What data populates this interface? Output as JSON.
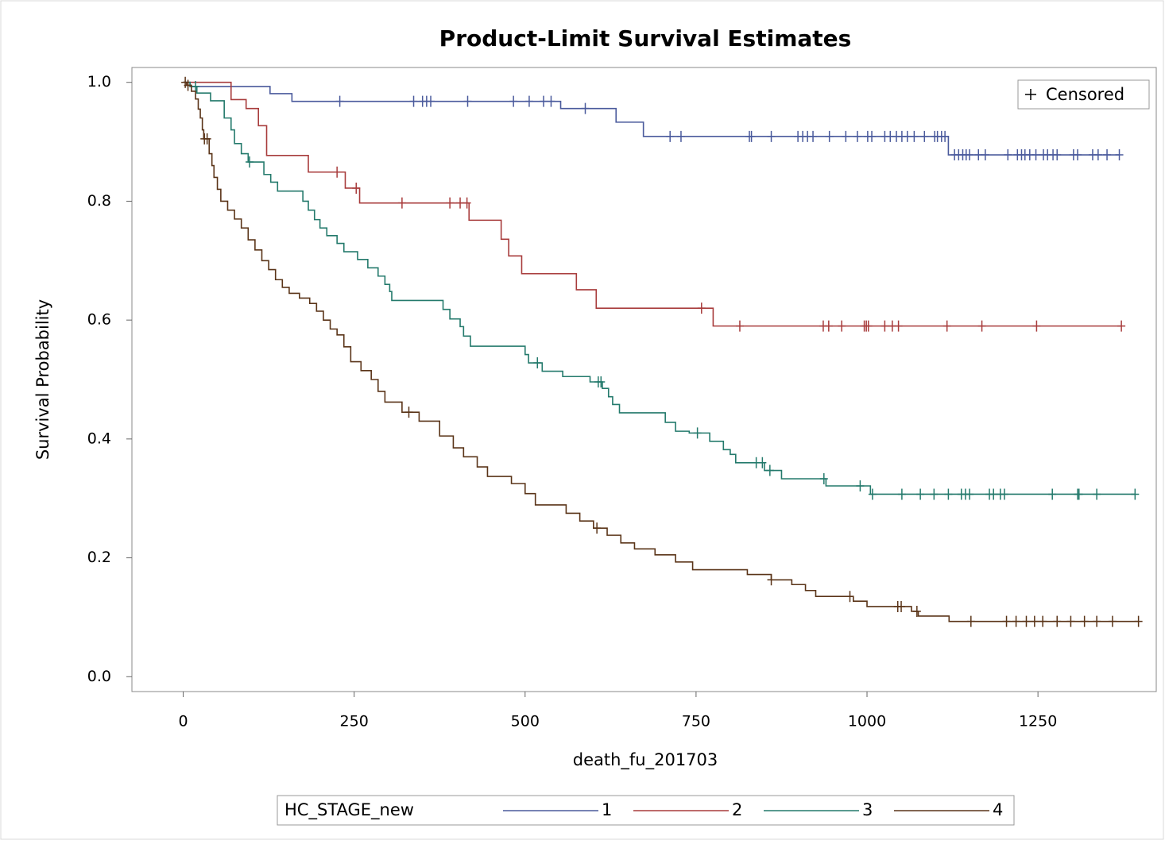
{
  "chart_data": {
    "type": "step",
    "title": "Product-Limit Survival Estimates",
    "x_label": "death_fu_201703",
    "y_label": "Survival Probability",
    "legend_title": "HC_STAGE_new",
    "censored_label": "Censored",
    "xlim": [
      -75,
      1423
    ],
    "ylim": [
      -0.025,
      1.025
    ],
    "xticks": [
      0,
      250,
      500,
      750,
      1000,
      1250
    ],
    "yticks": [
      {
        "value": 0,
        "label": "0.0"
      },
      0.2,
      0.4,
      0.6,
      0.8,
      {
        "value": 1,
        "label": "1.0"
      }
    ],
    "series": [
      {
        "name": "1",
        "color": "#4a5a9c",
        "x": [
          0,
          10,
          127,
          159,
          552,
          633,
          673,
          1119
        ],
        "values": [
          1,
          0.993,
          0.981,
          0.968,
          0.956,
          0.933,
          0.909,
          0.878
        ],
        "censored_x": [
          229,
          337,
          350,
          356,
          362,
          416,
          483,
          506,
          527,
          538,
          588,
          712,
          728,
          828,
          831,
          860,
          899,
          906,
          913,
          921,
          945,
          969,
          986,
          1001,
          1007,
          1026,
          1034,
          1043,
          1051,
          1059,
          1069,
          1084,
          1099,
          1103,
          1109,
          1114,
          1128,
          1134,
          1140,
          1145,
          1150,
          1163,
          1173,
          1206,
          1220,
          1226,
          1231,
          1238,
          1247,
          1258,
          1264,
          1272,
          1278,
          1302,
          1308,
          1330,
          1338,
          1351,
          1369
        ]
      },
      {
        "name": "2",
        "color": "#a83c3c",
        "x": [
          0,
          70,
          92,
          110,
          122,
          183,
          237,
          258,
          418,
          465,
          476,
          495,
          575,
          604,
          775
        ],
        "values": [
          1,
          0.971,
          0.956,
          0.927,
          0.877,
          0.849,
          0.822,
          0.797,
          0.768,
          0.736,
          0.708,
          0.678,
          0.651,
          0.62,
          0.59
        ],
        "censored_x": [
          225,
          253,
          320,
          390,
          405,
          415,
          758,
          814,
          936,
          944,
          963,
          996,
          999,
          1002,
          1026,
          1037,
          1046,
          1117,
          1168,
          1248,
          1372
        ]
      },
      {
        "name": "3",
        "color": "#247a6c",
        "x": [
          0,
          10,
          20,
          40,
          60,
          70,
          75,
          85,
          95,
          118,
          128,
          138,
          175,
          183,
          192,
          200,
          210,
          225,
          235,
          255,
          270,
          285,
          295,
          302,
          305,
          380,
          390,
          405,
          410,
          420,
          500,
          505,
          525,
          555,
          595,
          613,
          622,
          628,
          638,
          705,
          720,
          740,
          770,
          790,
          800,
          808,
          850,
          875,
          940,
          1005
        ],
        "values": [
          1,
          0.993,
          0.982,
          0.969,
          0.94,
          0.92,
          0.897,
          0.88,
          0.866,
          0.845,
          0.832,
          0.817,
          0.8,
          0.785,
          0.769,
          0.755,
          0.742,
          0.729,
          0.715,
          0.702,
          0.688,
          0.674,
          0.66,
          0.648,
          0.633,
          0.618,
          0.602,
          0.589,
          0.573,
          0.556,
          0.542,
          0.528,
          0.514,
          0.505,
          0.496,
          0.485,
          0.471,
          0.458,
          0.444,
          0.428,
          0.413,
          0.41,
          0.396,
          0.382,
          0.374,
          0.36,
          0.347,
          0.333,
          0.321,
          0.307
        ],
        "censored_x": [
          18,
          97,
          518,
          607,
          611,
          752,
          838,
          847,
          858,
          937,
          990,
          1008,
          1051,
          1078,
          1098,
          1119,
          1138,
          1144,
          1150,
          1179,
          1185,
          1195,
          1201,
          1271,
          1308,
          1310,
          1336,
          1392
        ]
      },
      {
        "name": "4",
        "color": "#5a3418",
        "x": [
          0,
          5,
          12,
          18,
          22,
          25,
          28,
          30,
          38,
          42,
          45,
          50,
          55,
          65,
          75,
          85,
          95,
          105,
          115,
          125,
          135,
          145,
          155,
          170,
          185,
          195,
          205,
          215,
          225,
          235,
          245,
          260,
          275,
          285,
          295,
          320,
          345,
          375,
          395,
          410,
          430,
          445,
          480,
          500,
          515,
          560,
          580,
          600,
          620,
          640,
          660,
          690,
          720,
          745,
          825,
          860,
          890,
          910,
          925,
          980,
          1000,
          1065,
          1075,
          1120
        ],
        "values": [
          1,
          0.995,
          0.985,
          0.972,
          0.955,
          0.94,
          0.92,
          0.905,
          0.88,
          0.86,
          0.84,
          0.82,
          0.8,
          0.785,
          0.77,
          0.755,
          0.735,
          0.718,
          0.7,
          0.685,
          0.668,
          0.655,
          0.645,
          0.637,
          0.628,
          0.615,
          0.6,
          0.585,
          0.575,
          0.555,
          0.53,
          0.515,
          0.5,
          0.48,
          0.462,
          0.445,
          0.43,
          0.405,
          0.385,
          0.37,
          0.353,
          0.337,
          0.325,
          0.308,
          0.289,
          0.275,
          0.262,
          0.25,
          0.238,
          0.225,
          0.215,
          0.205,
          0.193,
          0.18,
          0.172,
          0.163,
          0.155,
          0.145,
          0.135,
          0.127,
          0.118,
          0.11,
          0.102,
          0.093
        ],
        "censored_x": [
          3,
          7,
          31,
          35,
          330,
          605,
          860,
          975,
          1045,
          1050,
          1073,
          1152,
          1204,
          1218,
          1233,
          1245,
          1257,
          1278,
          1298,
          1318,
          1336,
          1359,
          1397
        ]
      }
    ]
  }
}
